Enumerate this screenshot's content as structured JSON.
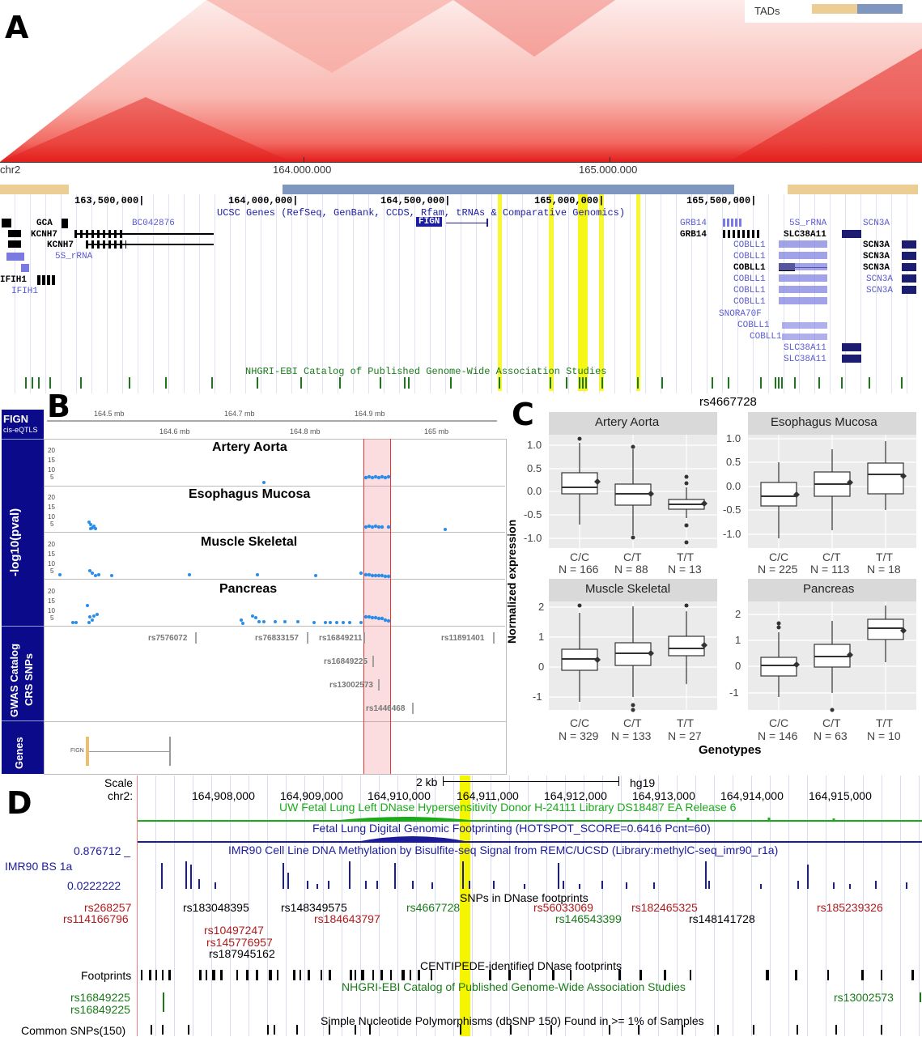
{
  "panels": {
    "a": "A",
    "b": "B",
    "c": "C",
    "d": "D"
  },
  "panelA": {
    "tads_label": "TADs",
    "chrom": "chr2",
    "coords": [
      "164.000.000",
      "165.000.000"
    ],
    "ucsc_coords": [
      "163,500,000|",
      "164,000,000|",
      "164,500,000|",
      "165,000,000|",
      "165,500,000|"
    ],
    "ucsc_track": "UCSC Genes (RefSeq, GenBank, CCDS, Rfam, tRNAs & Comparative Genomics)",
    "genes_left": [
      "GCA",
      "KCNH7",
      "KCNH7",
      "5S_rRNA",
      "IFIH1",
      "IFIH1",
      "BC042876"
    ],
    "fign": "FIGN",
    "genes_right": [
      "GRB14",
      "GRB14",
      "COBLL1",
      "COBLL1",
      "COBLL1",
      "COBLL1",
      "COBLL1",
      "COBLL1",
      "SNORA70F",
      "COBLL1",
      "COBLL1",
      "SLC38A11",
      "SLC38A11",
      "5S_rRNA",
      "SLC38A11",
      "SCN3A",
      "SCN3A",
      "SCN3A",
      "SCN3A",
      "SCN3A",
      "SCN3A",
      "SCN3A"
    ],
    "gwas_track": "NHGRI-EBI Catalog of Published Genome-Wide Association Studies"
  },
  "panelB": {
    "sidebar": [
      "FIGN",
      "cis-eQTLS",
      "-log10(pval)",
      "GWAS Catalog",
      "CRS SNPs",
      "Genes"
    ],
    "axis_top": [
      "164.5 mb",
      "164.7 mb",
      "164.9 mb"
    ],
    "axis_bottom": [
      "164.6 mb",
      "164.8 mb",
      "165 mb"
    ],
    "tracks": [
      "Artery Aorta",
      "Esophagus Mucosa",
      "Muscle Skeletal",
      "Pancreas"
    ],
    "yticks": [
      "20",
      "15",
      "10",
      "5"
    ],
    "snps": [
      "rs7576072",
      "rs76833157",
      "rs16849211",
      "rs11891401",
      "rs16849225",
      "rs13002573",
      "rs1446468"
    ],
    "gene": "FIGN"
  },
  "panelC": {
    "title": "rs4667728",
    "ylabel": "Normalized expression",
    "xlabel": "Genotypes",
    "facets": [
      {
        "name": "Artery Aorta",
        "yticks": [
          "1.0",
          "0.5",
          "0.0",
          "-0.5",
          "-1.0"
        ],
        "genotypes": [
          "C/C",
          "C/T",
          "T/T"
        ],
        "counts": [
          "N = 166",
          "N = 88",
          "N = 13"
        ]
      },
      {
        "name": "Esophagus Mucosa",
        "yticks": [
          "1.0",
          "0.5",
          "0.0",
          "-0.5",
          "-1.0"
        ],
        "genotypes": [
          "C/C",
          "C/T",
          "T/T"
        ],
        "counts": [
          "N = 225",
          "N = 113",
          "N = 18"
        ]
      },
      {
        "name": "Muscle Skeletal",
        "yticks": [
          "2",
          "1",
          "0",
          "-1"
        ],
        "genotypes": [
          "C/C",
          "C/T",
          "T/T"
        ],
        "counts": [
          "N = 329",
          "N = 133",
          "N = 27"
        ]
      },
      {
        "name": "Pancreas",
        "yticks": [
          "2",
          "1",
          "0",
          "-1"
        ],
        "genotypes": [
          "C/C",
          "C/T",
          "T/T"
        ],
        "counts": [
          "N = 146",
          "N = 63",
          "N = 10"
        ]
      }
    ]
  },
  "panelD": {
    "scale": "Scale",
    "chrom": "chr2:",
    "kb": "2 kb",
    "assembly": "hg19",
    "coords": [
      "164,908,000",
      "164,909,000",
      "164,910,000",
      "164,911,000",
      "164,912,000",
      "164,913,000",
      "164,914,000",
      "164,915,000"
    ],
    "dnase": "UW Fetal Lung Left DNase Hypersensitivity Donor H-24111 Library DS18487 EA Release 6",
    "footprint": "Fetal Lung Digital Genomic Footprinting (HOTSPOT_SCORE=0.6416 Pcnt=60)",
    "methyl": "IMR90 Cell Line DNA Methylation by Bisulfite-seq Signal from REMC/UCSD (Library:methylC-seq_imr90_r1a)",
    "methyl_max": "0.876712 _",
    "methyl_name": "IMR90 BS 1a",
    "methyl_min": "0.0222222",
    "snp_track": "SNPs in DNase footprints",
    "snps": [
      "rs268257",
      "rs114166796",
      "rs183048395",
      "rs10497247",
      "rs145776957",
      "rs187945162",
      "rs148349575",
      "rs184643797",
      "rs4667728",
      "rs56033069",
      "rs146543399",
      "rs182465325",
      "rs148141728",
      "rs185239326"
    ],
    "centipede": "CENTIPEDE-identified DNase footprints",
    "footprints": "Footprints",
    "gwas": "NHGRI-EBI Catalog of Published Genome-Wide Association Studies",
    "gwas_snps": [
      "rs16849225",
      "rs16849225",
      "rs13002573"
    ],
    "common": "Simple Nucleotide Polymorphisms (dbSNP 150) Found in >= 1% of Samples",
    "common_label": "Common SNPs(150)"
  },
  "colors": {
    "heat": "#e8201e",
    "tad_a": "#eccd94",
    "tad_b": "#7f97be",
    "ucsc_blue": "#1c1ca0",
    "gwas_green": "#1a7a1a",
    "highlight": "#f5f500",
    "sidebar_blue": "#0a0a8a",
    "snp_red": "#b01c1c"
  }
}
